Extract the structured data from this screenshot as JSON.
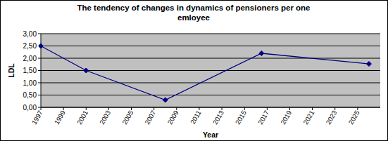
{
  "chart_data": {
    "type": "line",
    "title": "The tendency of changes in dynamics of pensioners per one emloyee",
    "x_label": "Year",
    "y_label": "LDL",
    "x": [
      1997,
      2001,
      2008,
      2016.5,
      2026
    ],
    "values": [
      2.5,
      1.5,
      0.3,
      2.2,
      1.77
    ],
    "color": "#000080",
    "marker": "diamond",
    "line_style": "solid",
    "grid": true,
    "xlim": [
      1997,
      2027
    ],
    "xticks": [
      1997,
      1999,
      2001,
      2003,
      2005,
      2007,
      2009,
      2011,
      2013,
      2015,
      2017,
      2019,
      2021,
      2023,
      2025
    ],
    "ylim": [
      0,
      3
    ],
    "yticks": [
      {
        "value": 0,
        "label": "0,00"
      },
      {
        "value": 0.5,
        "label": "0,50"
      },
      {
        "value": 1,
        "label": "1,00"
      },
      {
        "value": 1.5,
        "label": "1,50"
      },
      {
        "value": 2,
        "label": "2,00"
      },
      {
        "value": 2.5,
        "label": "2,50"
      },
      {
        "value": 3,
        "label": "3,00"
      }
    ]
  }
}
